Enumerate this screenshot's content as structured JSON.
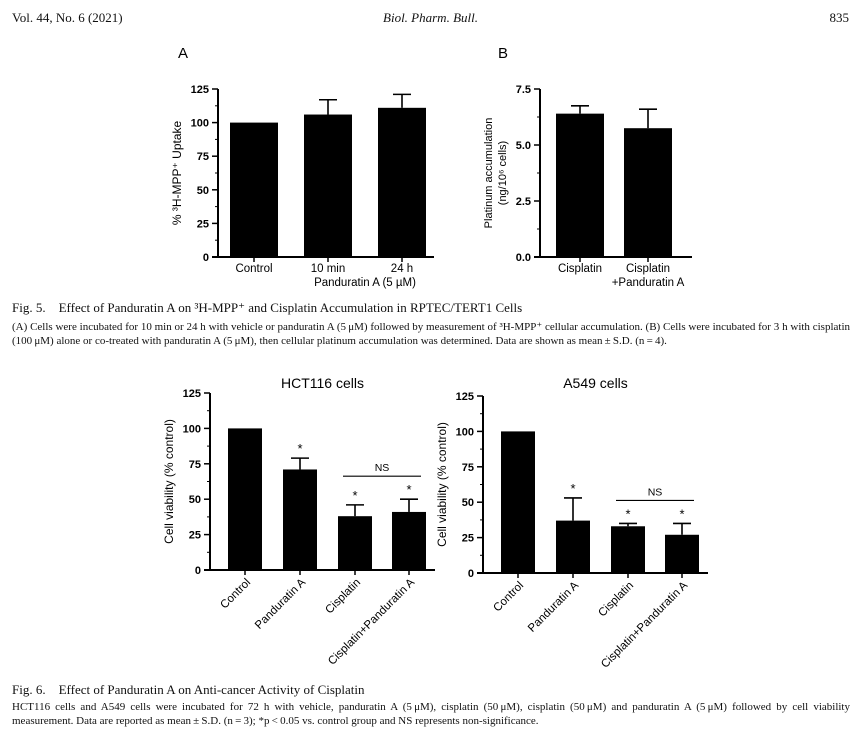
{
  "header": {
    "volume": "Vol. 44, No. 6 (2021)",
    "journal": "Biol. Pharm. Bull.",
    "page_number": "835"
  },
  "fig5": {
    "caption_title": "Fig. 5. Effect of Panduratin A on ³H-MPP⁺ and Cisplatin Accumulation in RPTEC/TERT1 Cells",
    "caption_body": "(A) Cells were incubated for 10 min or 24 h with vehicle or panduratin A (5 μM) followed by measurement of ³H-MPP⁺ cellular accumulation. (B) Cells were incubated for 3 h with cisplatin (100 μM) alone or co-treated with panduratin A (5 μM), then cellular platinum accumulation was determined. Data are shown as mean ± S.D. (n = 4)."
  },
  "fig6": {
    "caption_title": "Fig. 6. Effect of Panduratin A on Anti-cancer Activity of Cisplatin",
    "caption_body": "HCT116 cells and A549 cells were incubated for 72 h with vehicle, panduratin A (5 μM), cisplatin (50 μM), cisplatin (50 μM) and panduratin A (5 μM) followed by cell viability measurement. Data are reported as mean ± S.D. (n = 3); *p < 0.05 vs. control group and NS represents non-significance."
  },
  "chart_data": [
    {
      "type": "bar",
      "panel_label": "A",
      "title": "",
      "ylabel": "% ³H-MPP⁺ Uptake",
      "categories": [
        "Control",
        "10 min",
        "24 h"
      ],
      "group_label": "Panduratin A (5 µM)",
      "values": [
        100,
        106,
        111
      ],
      "errors": [
        0,
        11,
        10
      ],
      "yticks": [
        "0",
        "25",
        "50",
        "75",
        "100",
        "125"
      ],
      "ylim": [
        0,
        125
      ],
      "grid": false
    },
    {
      "type": "bar",
      "panel_label": "B",
      "title": "",
      "ylabel": "Platinum accumulation",
      "ylabel2": "(ng/10⁶ cells)",
      "categories": [
        "Cisplatin",
        "Cisplatin"
      ],
      "categories2": [
        "",
        "+Panduratin A"
      ],
      "values": [
        6.4,
        5.75
      ],
      "errors": [
        0.35,
        0.85
      ],
      "yticks": [
        "0.0",
        "2.5",
        "5.0",
        "7.5"
      ],
      "ylim": [
        0,
        7.5
      ],
      "grid": false
    },
    {
      "type": "bar",
      "title": "HCT116 cells",
      "ylabel": "Cell viability (% control)",
      "categories": [
        "Control",
        "Panduratin A",
        "Cisplatin",
        "Cisplatin+Panduratin A"
      ],
      "values": [
        100,
        71,
        38,
        41
      ],
      "errors": [
        0,
        8,
        8,
        9
      ],
      "significance": [
        "",
        "*",
        "*",
        "*"
      ],
      "ns_label": "NS",
      "yticks": [
        "0",
        "25",
        "50",
        "75",
        "100",
        "125"
      ],
      "ylim": [
        0,
        125
      ],
      "grid": false
    },
    {
      "type": "bar",
      "title": "A549 cells",
      "ylabel": "Cell viability (% control)",
      "categories": [
        "Control",
        "Panduratin A",
        "Cisplatin",
        "Cisplatin+Panduratin A"
      ],
      "values": [
        100,
        37,
        33,
        27
      ],
      "errors": [
        0,
        16,
        2,
        8
      ],
      "significance": [
        "",
        "*",
        "*",
        "*"
      ],
      "ns_label": "NS",
      "yticks": [
        "0",
        "25",
        "50",
        "75",
        "100",
        "125"
      ],
      "ylim": [
        0,
        125
      ],
      "grid": false
    }
  ]
}
